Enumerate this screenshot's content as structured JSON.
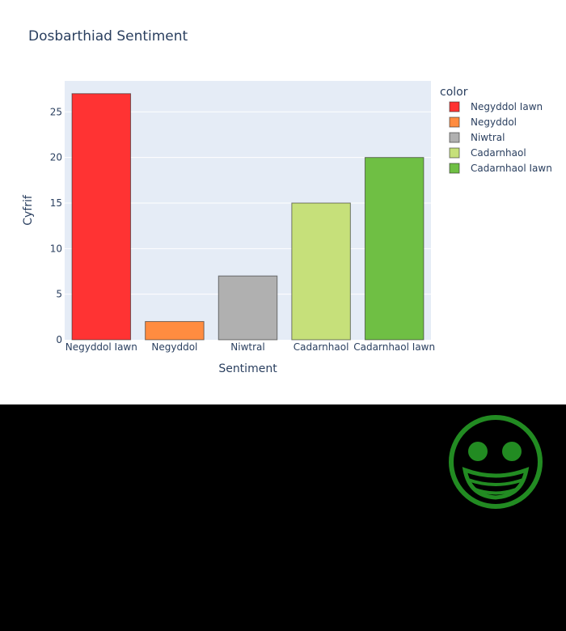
{
  "chart_data": {
    "type": "bar",
    "title": "Dosbarthiad Sentiment",
    "xlabel": "Sentiment",
    "ylabel": "Cyfrif",
    "categories": [
      "Negyddol Iawn",
      "Negyddol",
      "Niwtral",
      "Cadarnhaol",
      "Cadarnhaol Iawn"
    ],
    "values": [
      27,
      2,
      7,
      15,
      20
    ],
    "colors": [
      "#ff3333",
      "#ff8c40",
      "#b0b0b0",
      "#c6e07a",
      "#6fbf44"
    ],
    "ylim": [
      0,
      28.4
    ],
    "yticks": [
      0,
      5,
      10,
      15,
      20,
      25
    ],
    "grid": true,
    "legend": {
      "title": "color",
      "placement": "right",
      "entries": [
        "Negyddol Iawn",
        "Negyddol",
        "Niwtral",
        "Cadarnhaol",
        "Cadarnhaol Iawn"
      ]
    },
    "plot_background": "#e5ecf6"
  },
  "decoration": {
    "icon": "grinning-face-icon",
    "icon_color": "#228b22",
    "panel_color": "#000000"
  }
}
